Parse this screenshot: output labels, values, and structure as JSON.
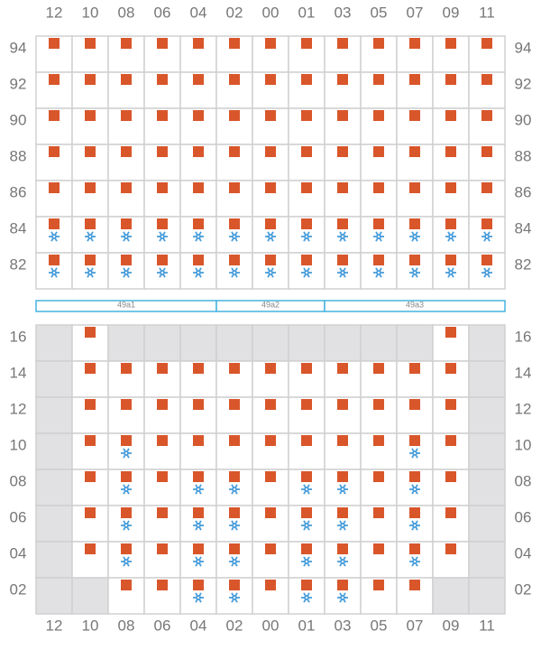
{
  "columns": [
    "12",
    "10",
    "08",
    "06",
    "04",
    "02",
    "00",
    "01",
    "03",
    "05",
    "07",
    "09",
    "11"
  ],
  "upper_grid": {
    "rows": [
      {
        "label": "94",
        "cells": [
          "sq",
          "sq",
          "sq",
          "sq",
          "sq",
          "sq",
          "sq",
          "sq",
          "sq",
          "sq",
          "sq",
          "sq",
          "sq"
        ]
      },
      {
        "label": "92",
        "cells": [
          "sq",
          "sq",
          "sq",
          "sq",
          "sq",
          "sq",
          "sq",
          "sq",
          "sq",
          "sq",
          "sq",
          "sq",
          "sq"
        ]
      },
      {
        "label": "90",
        "cells": [
          "sq",
          "sq",
          "sq",
          "sq",
          "sq",
          "sq",
          "sq",
          "sq",
          "sq",
          "sq",
          "sq",
          "sq",
          "sq"
        ]
      },
      {
        "label": "88",
        "cells": [
          "sq",
          "sq",
          "sq",
          "sq",
          "sq",
          "sq",
          "sq",
          "sq",
          "sq",
          "sq",
          "sq",
          "sq",
          "sq"
        ]
      },
      {
        "label": "86",
        "cells": [
          "sq",
          "sq",
          "sq",
          "sq",
          "sq",
          "sq",
          "sq",
          "sq",
          "sq",
          "sq",
          "sq",
          "sq",
          "sq"
        ]
      },
      {
        "label": "84",
        "cells": [
          "sq-snow",
          "sq-snow",
          "sq-snow",
          "sq-snow",
          "sq-snow",
          "sq-snow",
          "sq-snow",
          "sq-snow",
          "sq-snow",
          "sq-snow",
          "sq-snow",
          "sq-snow",
          "sq-snow"
        ]
      },
      {
        "label": "82",
        "cells": [
          "sq-snow",
          "sq-snow",
          "sq-snow",
          "sq-snow",
          "sq-snow",
          "sq-snow",
          "sq-snow",
          "sq-snow",
          "sq-snow",
          "sq-snow",
          "sq-snow",
          "sq-snow",
          "sq-snow"
        ]
      }
    ]
  },
  "bands": [
    {
      "label": "49a1",
      "span": 5
    },
    {
      "label": "49a2",
      "span": 3
    },
    {
      "label": "49a3",
      "span": 5
    }
  ],
  "lower_grid": {
    "rows": [
      {
        "label": "16",
        "cells": [
          "off",
          "sq",
          "off",
          "off",
          "off",
          "off",
          "off",
          "off",
          "off",
          "off",
          "off",
          "sq",
          "off"
        ]
      },
      {
        "label": "14",
        "cells": [
          "off",
          "sq",
          "sq",
          "sq",
          "sq",
          "sq",
          "sq",
          "sq",
          "sq",
          "sq",
          "sq",
          "sq",
          "off"
        ]
      },
      {
        "label": "12",
        "cells": [
          "off",
          "sq",
          "sq",
          "sq",
          "sq",
          "sq",
          "sq",
          "sq",
          "sq",
          "sq",
          "sq",
          "sq",
          "off"
        ]
      },
      {
        "label": "10",
        "cells": [
          "off",
          "sq",
          "sq-snow",
          "sq",
          "sq",
          "sq",
          "sq",
          "sq",
          "sq",
          "sq",
          "sq-snow",
          "sq",
          "off"
        ]
      },
      {
        "label": "08",
        "cells": [
          "off",
          "sq",
          "sq-snow",
          "sq",
          "sq-snow",
          "sq-snow",
          "sq",
          "sq-snow",
          "sq-snow",
          "sq",
          "sq-snow",
          "sq",
          "off"
        ]
      },
      {
        "label": "06",
        "cells": [
          "off",
          "sq",
          "sq-snow",
          "sq",
          "sq-snow",
          "sq-snow",
          "sq",
          "sq-snow",
          "sq-snow",
          "sq",
          "sq-snow",
          "sq",
          "off"
        ]
      },
      {
        "label": "04",
        "cells": [
          "off",
          "sq",
          "sq-snow",
          "sq",
          "sq-snow",
          "sq-snow",
          "sq",
          "sq-snow",
          "sq-snow",
          "sq",
          "sq-snow",
          "sq",
          "off"
        ]
      },
      {
        "label": "02",
        "cells": [
          "off",
          "off",
          "sq",
          "sq",
          "sq-snow",
          "sq-snow",
          "sq",
          "sq-snow",
          "sq-snow",
          "sq",
          "sq",
          "off",
          "off"
        ]
      }
    ]
  }
}
